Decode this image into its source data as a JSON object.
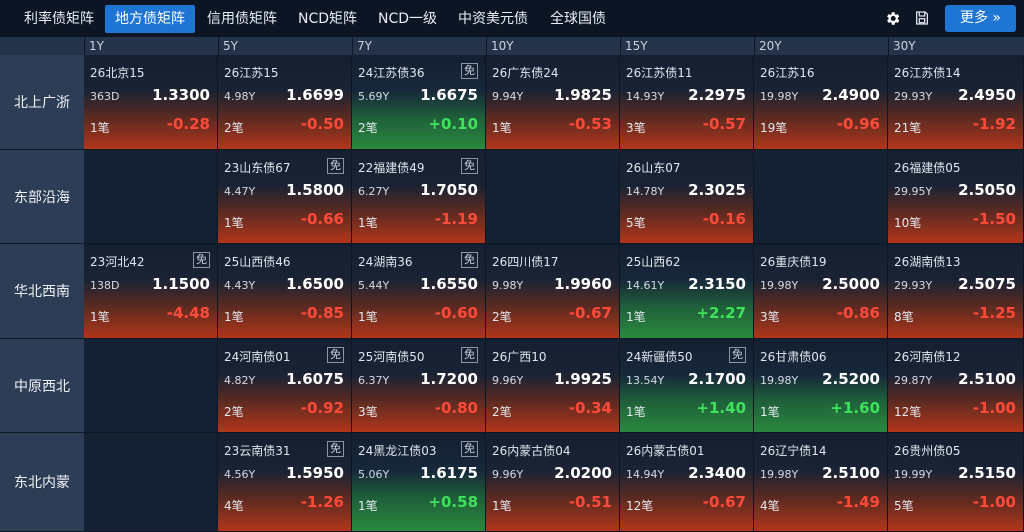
{
  "tabs": [
    {
      "label": "利率债矩阵",
      "active": false
    },
    {
      "label": "地方债矩阵",
      "active": true
    },
    {
      "label": "信用债矩阵",
      "active": false
    },
    {
      "label": "NCD矩阵",
      "active": false
    },
    {
      "label": "NCD一级",
      "active": false
    },
    {
      "label": "中资美元债",
      "active": false
    },
    {
      "label": "全球国债",
      "active": false
    }
  ],
  "toolbar": {
    "settings_icon": "gear-icon",
    "save_icon": "save-icon",
    "more_label": "更多 »"
  },
  "colors": {
    "accent": "#1e75d4",
    "negative": "#ff4a3a",
    "positive": "#3fe25c"
  },
  "columns": [
    "1Y",
    "5Y",
    "7Y",
    "10Y",
    "15Y",
    "20Y",
    "30Y"
  ],
  "rows": [
    {
      "label": "北上广浙",
      "cells": [
        {
          "name": "26北京15",
          "term": "363D",
          "yield": "1.3300",
          "count": "1笔",
          "change": "-0.28",
          "dir": "neg",
          "mian": false
        },
        {
          "name": "26江苏15",
          "term": "4.98Y",
          "yield": "1.6699",
          "count": "2笔",
          "change": "-0.50",
          "dir": "neg",
          "mian": false
        },
        {
          "name": "24江苏债36",
          "term": "5.69Y",
          "yield": "1.6675",
          "count": "2笔",
          "change": "+0.10",
          "dir": "pos",
          "mian": true
        },
        {
          "name": "26广东债24",
          "term": "9.94Y",
          "yield": "1.9825",
          "count": "1笔",
          "change": "-0.53",
          "dir": "neg",
          "mian": false
        },
        {
          "name": "26江苏债11",
          "term": "14.93Y",
          "yield": "2.2975",
          "count": "3笔",
          "change": "-0.57",
          "dir": "neg",
          "mian": false
        },
        {
          "name": "26江苏16",
          "term": "19.98Y",
          "yield": "2.4900",
          "count": "19笔",
          "change": "-0.96",
          "dir": "neg",
          "mian": false
        },
        {
          "name": "26江苏债14",
          "term": "29.93Y",
          "yield": "2.4950",
          "count": "21笔",
          "change": "-1.92",
          "dir": "neg",
          "mian": false
        }
      ]
    },
    {
      "label": "东部沿海",
      "cells": [
        null,
        {
          "name": "23山东债67",
          "term": "4.47Y",
          "yield": "1.5800",
          "count": "1笔",
          "change": "-0.66",
          "dir": "neg",
          "mian": true
        },
        {
          "name": "22福建债49",
          "term": "6.27Y",
          "yield": "1.7050",
          "count": "1笔",
          "change": "-1.19",
          "dir": "neg",
          "mian": true
        },
        null,
        {
          "name": "26山东07",
          "term": "14.78Y",
          "yield": "2.3025",
          "count": "5笔",
          "change": "-0.16",
          "dir": "neg",
          "mian": false
        },
        null,
        {
          "name": "26福建债05",
          "term": "29.95Y",
          "yield": "2.5050",
          "count": "10笔",
          "change": "-1.50",
          "dir": "neg",
          "mian": false
        }
      ]
    },
    {
      "label": "华北西南",
      "cells": [
        {
          "name": "23河北42",
          "term": "138D",
          "yield": "1.1500",
          "count": "1笔",
          "change": "-4.48",
          "dir": "neg",
          "mian": true
        },
        {
          "name": "25山西债46",
          "term": "4.43Y",
          "yield": "1.6500",
          "count": "1笔",
          "change": "-0.85",
          "dir": "neg",
          "mian": false
        },
        {
          "name": "24湖南36",
          "term": "5.44Y",
          "yield": "1.6550",
          "count": "1笔",
          "change": "-0.60",
          "dir": "neg",
          "mian": true
        },
        {
          "name": "26四川债17",
          "term": "9.98Y",
          "yield": "1.9960",
          "count": "2笔",
          "change": "-0.67",
          "dir": "neg",
          "mian": false
        },
        {
          "name": "25山西62",
          "term": "14.61Y",
          "yield": "2.3150",
          "count": "1笔",
          "change": "+2.27",
          "dir": "pos",
          "mian": false
        },
        {
          "name": "26重庆债19",
          "term": "19.98Y",
          "yield": "2.5000",
          "count": "3笔",
          "change": "-0.86",
          "dir": "neg",
          "mian": false
        },
        {
          "name": "26湖南债13",
          "term": "29.93Y",
          "yield": "2.5075",
          "count": "8笔",
          "change": "-1.25",
          "dir": "neg",
          "mian": false
        }
      ]
    },
    {
      "label": "中原西北",
      "cells": [
        null,
        {
          "name": "24河南债01",
          "term": "4.82Y",
          "yield": "1.6075",
          "count": "2笔",
          "change": "-0.92",
          "dir": "neg",
          "mian": true
        },
        {
          "name": "25河南债50",
          "term": "6.37Y",
          "yield": "1.7200",
          "count": "3笔",
          "change": "-0.80",
          "dir": "neg",
          "mian": true
        },
        {
          "name": "26广西10",
          "term": "9.96Y",
          "yield": "1.9925",
          "count": "2笔",
          "change": "-0.34",
          "dir": "neg",
          "mian": false
        },
        {
          "name": "24新疆债50",
          "term": "13.54Y",
          "yield": "2.1700",
          "count": "1笔",
          "change": "+1.40",
          "dir": "pos",
          "mian": true
        },
        {
          "name": "26甘肃债06",
          "term": "19.98Y",
          "yield": "2.5200",
          "count": "1笔",
          "change": "+1.60",
          "dir": "pos",
          "mian": false
        },
        {
          "name": "26河南债12",
          "term": "29.87Y",
          "yield": "2.5100",
          "count": "12笔",
          "change": "-1.00",
          "dir": "neg",
          "mian": false
        }
      ]
    },
    {
      "label": "东北内蒙",
      "cells": [
        null,
        {
          "name": "23云南债31",
          "term": "4.56Y",
          "yield": "1.5950",
          "count": "4笔",
          "change": "-1.26",
          "dir": "neg",
          "mian": true
        },
        {
          "name": "24黑龙江债03",
          "term": "5.06Y",
          "yield": "1.6175",
          "count": "1笔",
          "change": "+0.58",
          "dir": "pos",
          "mian": true
        },
        {
          "name": "26内蒙古债04",
          "term": "9.96Y",
          "yield": "2.0200",
          "count": "1笔",
          "change": "-0.51",
          "dir": "neg",
          "mian": false
        },
        {
          "name": "26内蒙古债01",
          "term": "14.94Y",
          "yield": "2.3400",
          "count": "12笔",
          "change": "-0.67",
          "dir": "neg",
          "mian": false
        },
        {
          "name": "26辽宁债14",
          "term": "19.98Y",
          "yield": "2.5100",
          "count": "4笔",
          "change": "-1.49",
          "dir": "neg",
          "mian": false
        },
        {
          "name": "26贵州债05",
          "term": "19.99Y",
          "yield": "2.5150",
          "count": "5笔",
          "change": "-1.00",
          "dir": "neg",
          "mian": false
        }
      ]
    }
  ],
  "mian_label": "免"
}
